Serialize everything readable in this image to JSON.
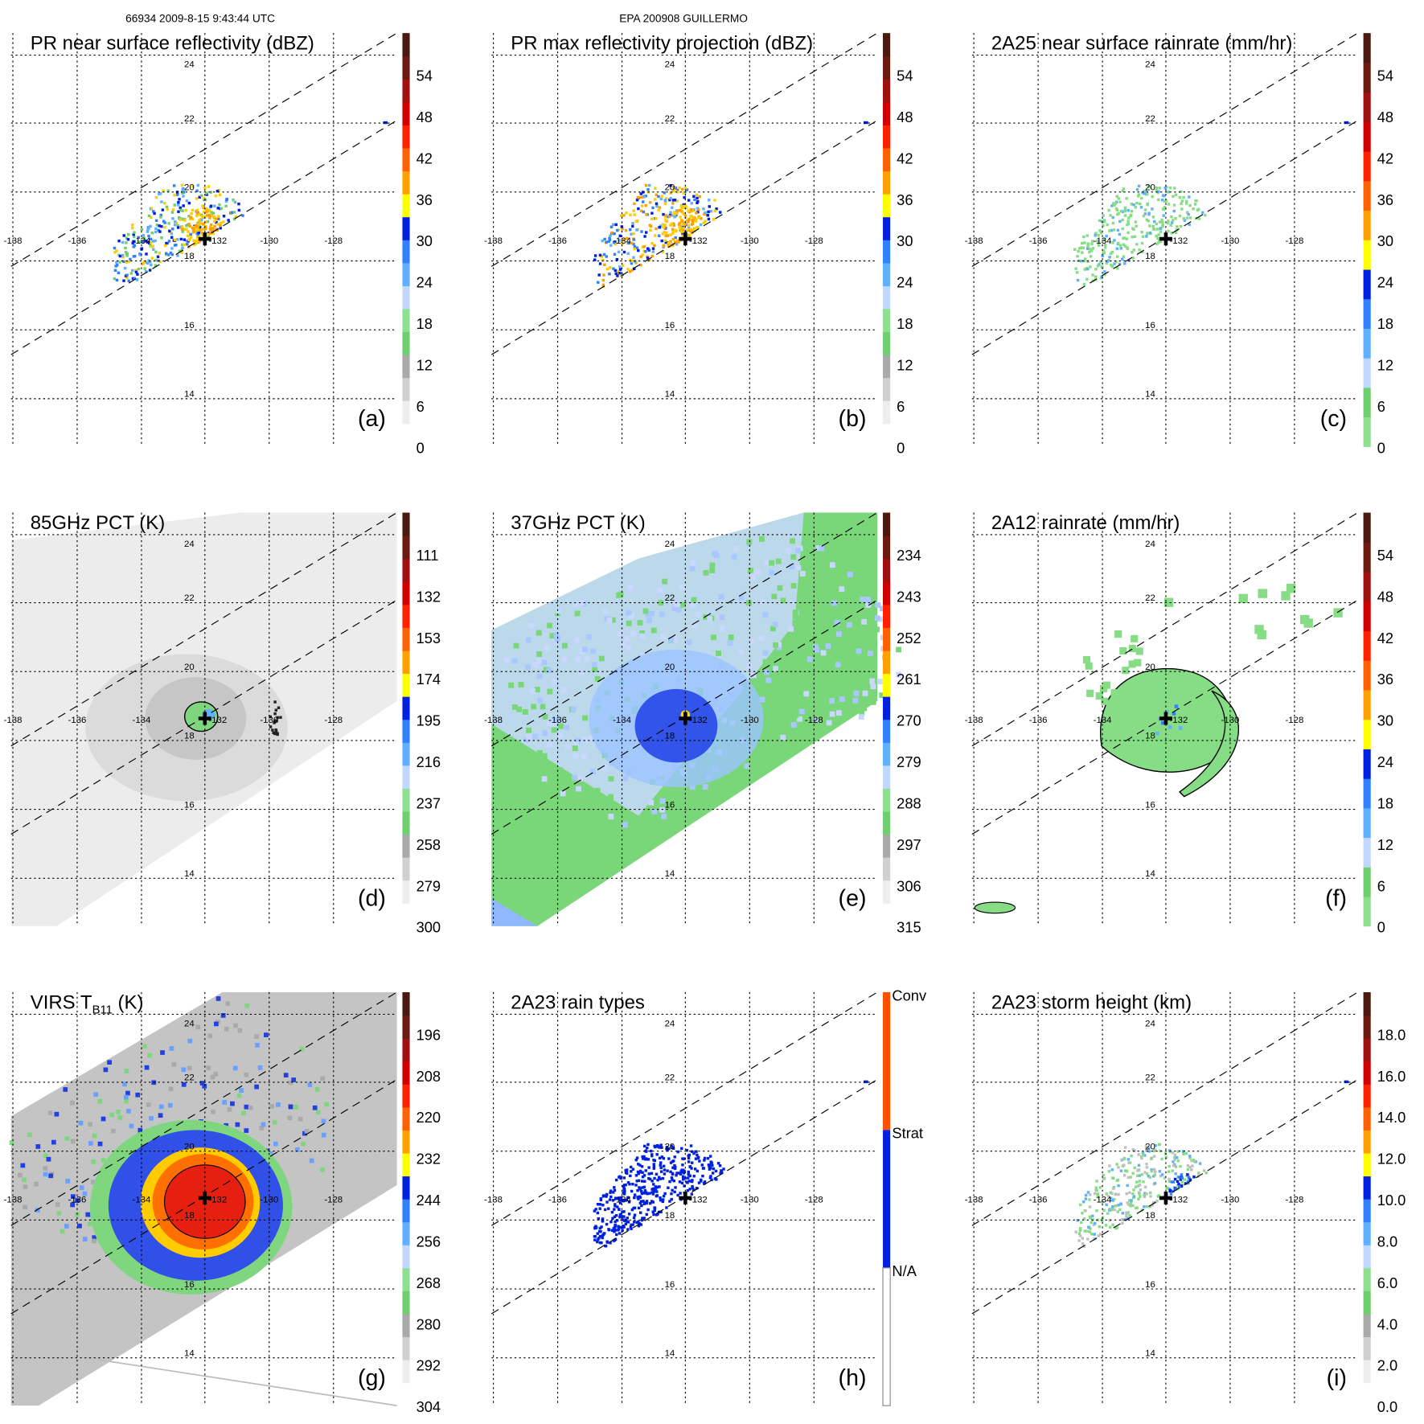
{
  "header": {
    "left": "66934 2009-8-15 9:43:44 UTC",
    "center": "EPA 200908 GUILLERMO"
  },
  "grid": {
    "lon_labels": [
      "-138",
      "-136",
      "-134",
      "-132",
      "-130",
      "-128"
    ],
    "lat_labels": [
      "24",
      "22",
      "20",
      "18",
      "16",
      "14"
    ]
  },
  "colors": {
    "refl": [
      "#ffffff",
      "#eeeeee",
      "#d0d0d0",
      "#aaaaaa",
      "#6fcf6f",
      "#8ee08e",
      "#c0d8ff",
      "#60b0ff",
      "#3080ff",
      "#0020e0",
      "#ffff00",
      "#ffa000",
      "#ff6000",
      "#ff2000",
      "#d00000",
      "#a01010",
      "#6a1a10",
      "#4a1a10"
    ],
    "rain": [
      "#8ee08e",
      "#6fcf6f",
      "#c0d8ff",
      "#60b0ff",
      "#3080ff",
      "#0020e0",
      "#ffff00",
      "#ffa000",
      "#ff6000",
      "#ff2000",
      "#d00000",
      "#a01010",
      "#6a1a10",
      "#4a1a10"
    ],
    "types": [
      "#ffffff",
      "#0020e0",
      "#ff5000"
    ]
  },
  "panels": [
    {
      "letter": "(a)",
      "title": "PR near surface reflectivity (dBZ)",
      "cbar": "refl",
      "labels": [
        "54",
        "48",
        "42",
        "36",
        "30",
        "24",
        "18",
        "12",
        "6",
        "0"
      ],
      "scene": "pr"
    },
    {
      "letter": "(b)",
      "title": "PR max reflectivity projection (dBZ)",
      "cbar": "refl",
      "labels": [
        "54",
        "48",
        "42",
        "36",
        "30",
        "24",
        "18",
        "12",
        "6",
        "0"
      ],
      "scene": "prmax"
    },
    {
      "letter": "(c)",
      "title": "2A25 near surface rainrate (mm/hr)",
      "cbar": "rain",
      "labels": [
        "54",
        "48",
        "42",
        "36",
        "30",
        "24",
        "18",
        "12",
        "6",
        "0"
      ],
      "scene": "rain25"
    },
    {
      "letter": "(d)",
      "title": "85GHz PCT (K)",
      "cbar": "refl",
      "labels": [
        "111",
        "132",
        "153",
        "174",
        "195",
        "216",
        "237",
        "258",
        "279",
        "300"
      ],
      "scene": "pct85"
    },
    {
      "letter": "(e)",
      "title": "37GHz PCT (K)",
      "cbar": "refl",
      "labels": [
        "234",
        "243",
        "252",
        "261",
        "270",
        "279",
        "288",
        "297",
        "306",
        "315"
      ],
      "scene": "pct37"
    },
    {
      "letter": "(f)",
      "title": "2A12 rainrate (mm/hr)",
      "cbar": "rain",
      "labels": [
        "54",
        "48",
        "42",
        "36",
        "30",
        "24",
        "18",
        "12",
        "6",
        "0"
      ],
      "scene": "rain12"
    },
    {
      "letter": "(g)",
      "title": "VIRS T",
      "title_sub": "B11",
      "title_end": " (K)",
      "cbar": "refl",
      "labels": [
        "196",
        "208",
        "220",
        "232",
        "244",
        "256",
        "268",
        "280",
        "292",
        "304"
      ],
      "scene": "virs"
    },
    {
      "letter": "(h)",
      "title": "2A23 rain types",
      "cbar": "types",
      "labels": [
        "Conv",
        "Strat",
        "N/A"
      ],
      "scene": "types"
    },
    {
      "letter": "(i)",
      "title": "2A23 storm height (km)",
      "cbar": "refl",
      "labels": [
        "18.0",
        "16.0",
        "14.0",
        "12.0",
        "10.0",
        "8.0",
        "6.0",
        "4.0",
        "2.0",
        "0.0"
      ],
      "scene": "height"
    }
  ]
}
